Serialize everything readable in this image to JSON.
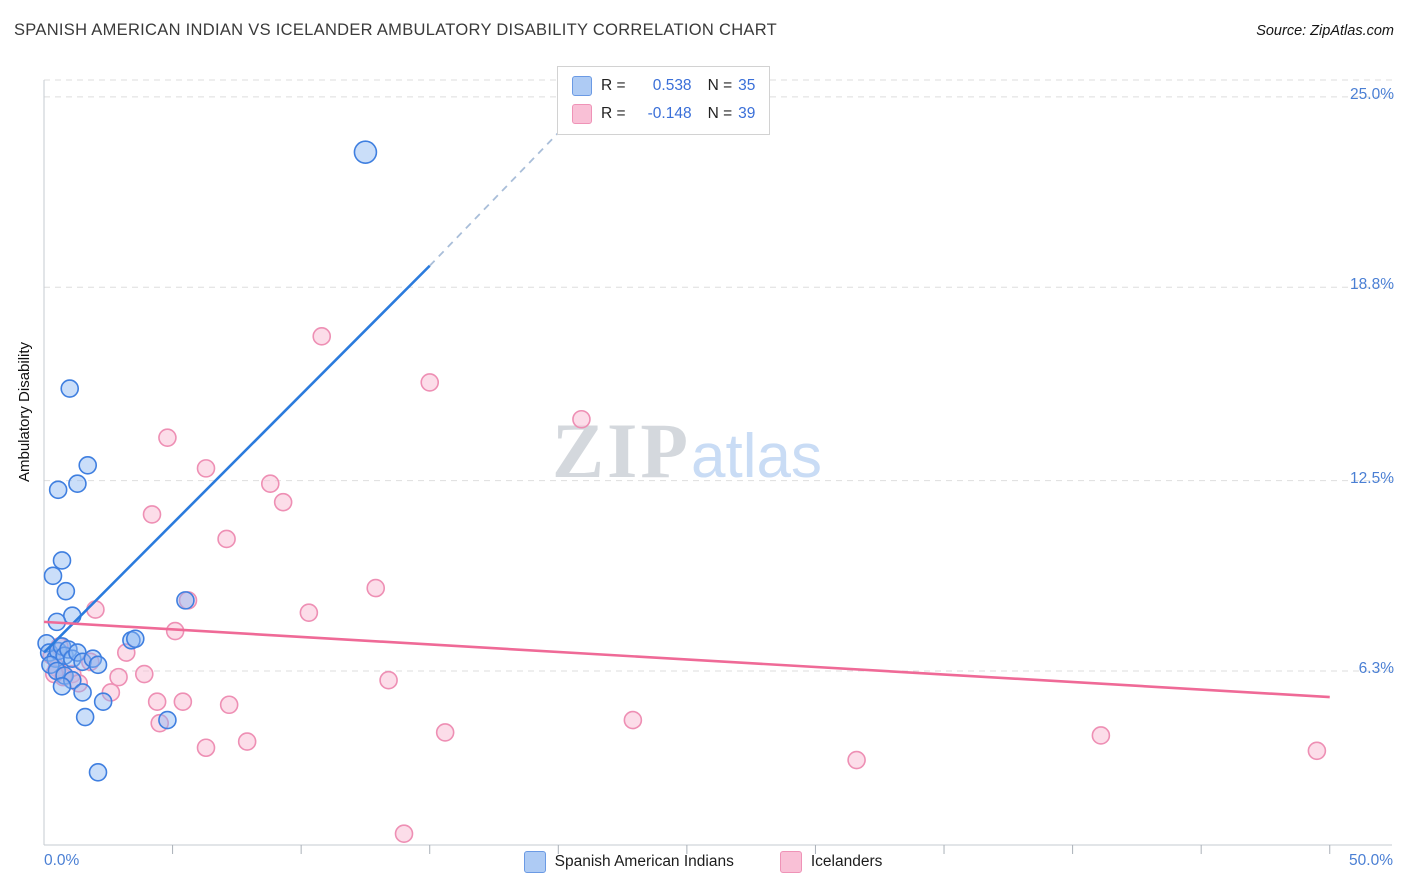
{
  "header": {
    "title": "SPANISH AMERICAN INDIAN VS ICELANDER AMBULATORY DISABILITY CORRELATION CHART",
    "source": "Source: ZipAtlas.com"
  },
  "watermark": {
    "zip": "ZIP",
    "atlas": "atlas"
  },
  "stats_box": {
    "rows": [
      {
        "r_label": "R =",
        "r_value": "0.538",
        "n_label": "N =",
        "n_value": "35"
      },
      {
        "r_label": "R =",
        "r_value": "-0.148",
        "n_label": "N =",
        "n_value": "39"
      }
    ]
  },
  "bottom_legend": {
    "items": [
      {
        "label": "Spanish American Indians"
      },
      {
        "label": "Icelanders"
      }
    ]
  },
  "x_axis_labels": {
    "left": "0.0%",
    "right": "50.0%"
  },
  "chart_data": {
    "type": "scatter",
    "title": "Spanish American Indian vs Icelander Ambulatory Disability",
    "ylabel": "Ambulatory Disability",
    "x_range_percent": [
      0,
      50
    ],
    "y_range_percent": [
      0,
      25.5
    ],
    "grid": "horizontal-dashed",
    "y_axis": {
      "ticks": [
        {
          "value": 25.0,
          "label": "25.0%"
        },
        {
          "value": 18.8,
          "label": "18.8%"
        },
        {
          "value": 12.5,
          "label": "12.5%"
        },
        {
          "value": 6.3,
          "label": "6.3%"
        }
      ]
    },
    "x_axis": {
      "minor_ticks": [
        5,
        10,
        15,
        20,
        25,
        30,
        35,
        40,
        45,
        50
      ],
      "left_label": "0.0%",
      "right_label": "50.0%"
    },
    "series": [
      {
        "name": "Spanish American Indians",
        "r": 0.538,
        "n": 35,
        "fill": "#8ab6f2",
        "fill_opacity": 0.45,
        "stroke": "#3f7fe0",
        "line_color": "#2b7bdd",
        "point_name": "scatter-point-spanish-american-indian",
        "trend_name": "trendline-spanish-american-indians",
        "trend_solid": [
          [
            0,
            6.9
          ],
          [
            15,
            19.5
          ]
        ],
        "trend_dashed": [
          [
            15,
            19.5
          ],
          [
            20.6,
            24.35
          ]
        ],
        "points": [
          [
            12.5,
            23.2,
            11
          ],
          [
            1.0,
            15.5
          ],
          [
            1.7,
            13.0
          ],
          [
            1.3,
            12.4
          ],
          [
            0.55,
            12.2
          ],
          [
            0.7,
            9.9
          ],
          [
            0.35,
            9.4
          ],
          [
            0.85,
            8.9
          ],
          [
            1.1,
            8.1
          ],
          [
            0.5,
            7.9
          ],
          [
            5.5,
            8.6
          ],
          [
            3.4,
            7.3
          ],
          [
            3.55,
            7.35
          ],
          [
            0.1,
            7.2
          ],
          [
            0.2,
            6.9
          ],
          [
            0.45,
            6.7
          ],
          [
            0.55,
            6.95
          ],
          [
            0.7,
            7.1
          ],
          [
            0.8,
            6.8
          ],
          [
            0.95,
            7.0
          ],
          [
            1.1,
            6.7
          ],
          [
            1.3,
            6.9
          ],
          [
            0.25,
            6.5
          ],
          [
            0.5,
            6.3
          ],
          [
            0.8,
            6.15
          ],
          [
            1.1,
            6.0
          ],
          [
            1.5,
            6.6
          ],
          [
            1.9,
            6.7
          ],
          [
            2.1,
            6.5
          ],
          [
            0.7,
            5.8
          ],
          [
            1.5,
            5.6
          ],
          [
            2.3,
            5.3
          ],
          [
            1.6,
            4.8
          ],
          [
            4.8,
            4.7
          ],
          [
            2.1,
            3.0
          ]
        ]
      },
      {
        "name": "Icelanders",
        "r": -0.148,
        "n": 39,
        "fill": "#f9bcd4",
        "fill_opacity": 0.5,
        "stroke": "#ee8fb4",
        "line_color": "#ef6a97",
        "point_name": "scatter-point-icelander",
        "trend_name": "trendline-icelanders",
        "trend_solid": [
          [
            0,
            7.9
          ],
          [
            50,
            5.45
          ]
        ],
        "points": [
          [
            10.8,
            17.2
          ],
          [
            15.0,
            15.7
          ],
          [
            20.9,
            14.5
          ],
          [
            4.8,
            13.9
          ],
          [
            6.3,
            12.9
          ],
          [
            8.8,
            12.4
          ],
          [
            9.3,
            11.8
          ],
          [
            4.2,
            11.4
          ],
          [
            7.1,
            10.6
          ],
          [
            12.9,
            9.0
          ],
          [
            10.3,
            8.2
          ],
          [
            2.0,
            8.3
          ],
          [
            5.6,
            8.6
          ],
          [
            5.1,
            7.6
          ],
          [
            3.2,
            6.9
          ],
          [
            0.3,
            6.8
          ],
          [
            0.6,
            7.1
          ],
          [
            0.5,
            6.4
          ],
          [
            0.75,
            6.1
          ],
          [
            1.1,
            6.2
          ],
          [
            0.4,
            6.2
          ],
          [
            1.35,
            5.9
          ],
          [
            1.8,
            6.6
          ],
          [
            2.9,
            6.1
          ],
          [
            3.9,
            6.2
          ],
          [
            13.4,
            6.0
          ],
          [
            5.4,
            5.3
          ],
          [
            4.4,
            5.3
          ],
          [
            2.6,
            5.6
          ],
          [
            7.2,
            5.2
          ],
          [
            4.5,
            4.6
          ],
          [
            6.3,
            3.8
          ],
          [
            7.9,
            4.0
          ],
          [
            15.6,
            4.3
          ],
          [
            22.9,
            4.7
          ],
          [
            31.6,
            3.4
          ],
          [
            41.1,
            4.2
          ],
          [
            49.5,
            3.7
          ],
          [
            14.0,
            1.0
          ]
        ]
      }
    ]
  }
}
